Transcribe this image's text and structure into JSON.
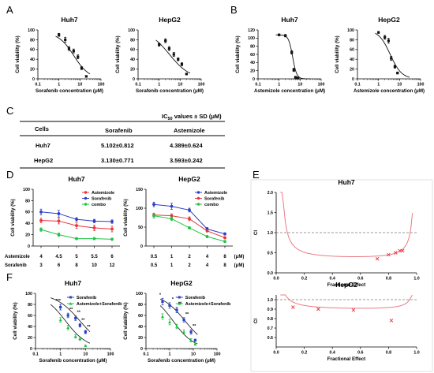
{
  "panel_labels": [
    "A",
    "B",
    "C",
    "D",
    "E",
    "F"
  ],
  "colors": {
    "black": "#111111",
    "red": "#e8343b",
    "blue": "#2b3fc4",
    "green": "#1ec442",
    "pink": "#ea7b86",
    "grey_dash": "#777777"
  },
  "table": {
    "header": "IC50 values ± SD (μM)",
    "header_main": "IC",
    "header_sub": "50",
    "header_rest": " values ± SD (μM)",
    "row_header": "Cells",
    "columns": [
      "Sorafenib",
      "Astemizole"
    ],
    "rows": [
      {
        "cell": "Huh7",
        "values": [
          "5.102±0.812",
          "4.389±0.624"
        ]
      },
      {
        "cell": "HepG2",
        "values": [
          "3.130±0.771",
          "3.593±0.242"
        ]
      }
    ]
  },
  "dose_table": {
    "row1_label": "Astemizole",
    "row2_label": "Sorafenib",
    "huh7_row1": [
      "4",
      "4.5",
      "5",
      "5.5",
      "6"
    ],
    "huh7_row2": [
      "3",
      "6",
      "8",
      "10",
      "12"
    ],
    "hepg2_row1": [
      "0.5",
      "1",
      "2",
      "4",
      "8",
      "(μM)"
    ],
    "hepg2_row2": [
      "0.5",
      "1",
      "2",
      "4",
      "8",
      "(μM)"
    ]
  },
  "chart_data": [
    {
      "id": "A1",
      "type": "scatter",
      "title": "Huh7",
      "xscale": "log",
      "xlabel": "Sorafenib concentration (μM)",
      "ylabel": "Cell viability (%)",
      "xlim": [
        0.1,
        100
      ],
      "ylim": [
        0,
        100
      ],
      "xticks": [
        "0.1",
        "1",
        "10",
        "100"
      ],
      "yticks": [
        0,
        20,
        40,
        60,
        80,
        100
      ],
      "series": [
        {
          "x": [
            1,
            2,
            3,
            5,
            8,
            12,
            20
          ],
          "y": [
            90,
            80,
            62,
            57,
            45,
            22,
            5
          ],
          "err": [
            3,
            5,
            4,
            4,
            4,
            3,
            1
          ]
        }
      ],
      "fit": {
        "top": 95,
        "bottom": 0,
        "ic50": 5.1,
        "hill": 1.2
      }
    },
    {
      "id": "A2",
      "type": "scatter",
      "title": "HepG2",
      "xscale": "log",
      "xlabel": "Sorafenib concentration (μM)",
      "ylabel": "Cell viability (%)",
      "xlim": [
        0.1,
        100
      ],
      "ylim": [
        0,
        100
      ],
      "xticks": [
        "0.1",
        "1",
        "10",
        "100"
      ],
      "yticks": [
        0,
        20,
        40,
        60,
        80,
        100
      ],
      "series": [
        {
          "x": [
            1,
            2,
            3,
            5,
            8,
            12,
            20
          ],
          "y": [
            70,
            78,
            62,
            50,
            40,
            30,
            10
          ],
          "err": [
            3,
            4,
            4,
            4,
            3,
            3,
            1
          ]
        }
      ],
      "fit": {
        "top": 100,
        "bottom": 0,
        "ic50": 3.1,
        "hill": 0.9
      }
    },
    {
      "id": "B1",
      "type": "scatter",
      "title": "Huh7",
      "xscale": "log",
      "xlabel": "Astemizole concentration (μM)",
      "ylabel": "Cell viability (%)",
      "xlim": [
        0.1,
        100
      ],
      "ylim": [
        0,
        120
      ],
      "xticks": [
        "0.1",
        "1",
        "10",
        "100"
      ],
      "yticks": [
        0,
        20,
        40,
        60,
        80,
        100,
        120
      ],
      "series": [
        {
          "x": [
            1,
            2,
            4,
            5,
            6,
            7,
            8
          ],
          "y": [
            108,
            106,
            65,
            22,
            4,
            2,
            2
          ],
          "err": [
            2,
            3,
            4,
            4,
            2,
            1,
            1
          ]
        }
      ],
      "fit": {
        "top": 108,
        "bottom": 0,
        "ic50": 4.4,
        "hill": 4.5
      }
    },
    {
      "id": "B2",
      "type": "scatter",
      "title": "HepG2",
      "xscale": "log",
      "xlabel": "Astemizole concentration (μM)",
      "ylabel": "Cell viability (%)",
      "xlim": [
        0.1,
        100
      ],
      "ylim": [
        0,
        100
      ],
      "xticks": [
        "0.1",
        "1",
        "10",
        "100"
      ],
      "yticks": [
        0,
        20,
        40,
        60,
        80,
        100
      ],
      "series": [
        {
          "x": [
            1,
            2,
            3,
            4,
            6,
            8
          ],
          "y": [
            95,
            85,
            78,
            42,
            25,
            12
          ],
          "err": [
            2,
            4,
            5,
            4,
            3,
            2
          ]
        }
      ],
      "fit": {
        "top": 100,
        "bottom": 0,
        "ic50": 3.6,
        "hill": 1.6
      }
    },
    {
      "id": "D1",
      "type": "line",
      "title": "Huh7",
      "ylabel": "Cell viability (%)",
      "ylim": [
        0,
        100
      ],
      "yticks": [
        0,
        20,
        40,
        60,
        80,
        100
      ],
      "categories": [
        "1",
        "2",
        "3",
        "4",
        "5"
      ],
      "series": [
        {
          "name": "Astemizole",
          "color": "#e8343b",
          "values": [
            45,
            44,
            36,
            32,
            30
          ],
          "err": [
            4,
            5,
            5,
            5,
            5
          ]
        },
        {
          "name": "Sorafenib",
          "color": "#2b3fc4",
          "values": [
            60,
            57,
            47,
            44,
            43
          ],
          "err": [
            5,
            6,
            3,
            3,
            3
          ]
        },
        {
          "name": "combo",
          "color": "#1ec442",
          "values": [
            29,
            20,
            13,
            13,
            12
          ],
          "err": [
            3,
            3,
            2,
            2,
            2
          ]
        }
      ]
    },
    {
      "id": "D2",
      "type": "line",
      "title": "HepG2",
      "ylabel": "Cell viability (%)",
      "ylim": [
        0,
        150
      ],
      "yticks": [
        0,
        50,
        100,
        150
      ],
      "categories": [
        "1",
        "2",
        "3",
        "4",
        "5"
      ],
      "series": [
        {
          "name": "Astemizole",
          "color": "#2b3fc4",
          "values": [
            110,
            105,
            95,
            45,
            32
          ],
          "err": [
            6,
            8,
            5,
            4,
            3
          ]
        },
        {
          "name": "Sorafenib",
          "color": "#e8343b",
          "values": [
            82,
            80,
            72,
            40,
            22
          ],
          "err": [
            5,
            5,
            5,
            3,
            3
          ]
        },
        {
          "name": "combo",
          "color": "#1ec442",
          "values": [
            80,
            72,
            48,
            25,
            12
          ],
          "err": [
            6,
            5,
            3,
            3,
            2
          ]
        }
      ]
    },
    {
      "id": "E1",
      "type": "scatter",
      "title": "Huh7",
      "xlabel": "Fractional Effect",
      "ylabel": "CI",
      "xlim": [
        0,
        1
      ],
      "ylim": [
        0,
        2
      ],
      "xticks": [
        "0.0",
        "0.2",
        "0.4",
        "0.6",
        "0.8",
        "1.0"
      ],
      "yticks": [
        "0.0",
        "0.5",
        "1.0",
        "1.5",
        "2.0"
      ],
      "reference_y": 1.0,
      "points": {
        "x": [
          0.72,
          0.8,
          0.85,
          0.88,
          0.9
        ],
        "y": [
          0.35,
          0.45,
          0.5,
          0.55,
          0.55
        ]
      }
    },
    {
      "id": "E2",
      "type": "scatter",
      "title": "HepG2",
      "xlabel": "Fractional Effect",
      "ylabel": "CI",
      "xlim": [
        0,
        1
      ],
      "ylim": [
        0.5,
        1.05
      ],
      "xticks": [
        "0.0",
        "0.2",
        "0.4",
        "0.6",
        "0.8",
        "1.0"
      ],
      "yticks": [
        "0.6",
        "0.7",
        "0.8",
        "0.9",
        "1.0"
      ],
      "reference_y": 1.0,
      "points": {
        "x": [
          0.12,
          0.3,
          0.55,
          0.82
        ],
        "y": [
          0.92,
          0.9,
          0.89,
          0.78
        ]
      }
    },
    {
      "id": "F1",
      "type": "scatter",
      "title": "Huh7",
      "xscale": "log",
      "xlabel": "Sorafenib concentration (μM)",
      "ylabel": "Cell viability (%)",
      "xlim": [
        0.1,
        100
      ],
      "ylim": [
        0,
        100
      ],
      "xticks": [
        "0.1",
        "1",
        "10",
        "100"
      ],
      "yticks": [
        0,
        20,
        40,
        60,
        80,
        100
      ],
      "series": [
        {
          "name": "Sorafenib",
          "color": "#2b3fc4",
          "x": [
            1,
            2,
            4,
            6,
            10
          ],
          "y": [
            75,
            60,
            55,
            42,
            30
          ],
          "err": [
            5,
            4,
            4,
            3,
            3
          ]
        },
        {
          "name": "Astemizole+Sorafenib",
          "color": "#1ec442",
          "x": [
            1,
            2,
            4,
            6,
            10
          ],
          "y": [
            52,
            38,
            22,
            18,
            5
          ],
          "err": [
            4,
            4,
            3,
            3,
            1
          ]
        }
      ],
      "stars": [
        "***",
        "**",
        "**",
        "**",
        "**"
      ]
    },
    {
      "id": "F2",
      "type": "scatter",
      "title": "HepG2",
      "xscale": "log",
      "xlabel": "Sorafenib concentration (μM)",
      "ylabel": "Cell viability (%)",
      "xlim": [
        0.1,
        100
      ],
      "ylim": [
        0,
        100
      ],
      "xticks": [
        "0.1",
        "1",
        "10",
        "100"
      ],
      "yticks": [
        0,
        20,
        40,
        60,
        80,
        100
      ],
      "series": [
        {
          "name": "Sorafenib",
          "color": "#2b3fc4",
          "x": [
            0.5,
            1,
            2,
            4,
            8,
            12
          ],
          "y": [
            85,
            78,
            70,
            52,
            30,
            15
          ],
          "err": [
            6,
            5,
            5,
            4,
            4,
            2
          ]
        },
        {
          "name": "Astemizole+Sorafenib",
          "color": "#1ec442",
          "x": [
            0.5,
            1,
            2,
            4,
            8,
            12
          ],
          "y": [
            58,
            48,
            40,
            30,
            15,
            8
          ],
          "err": [
            5,
            5,
            4,
            4,
            3,
            2
          ]
        }
      ],
      "stars": [
        "*",
        "*",
        "**",
        "**",
        "**",
        ""
      ]
    }
  ]
}
